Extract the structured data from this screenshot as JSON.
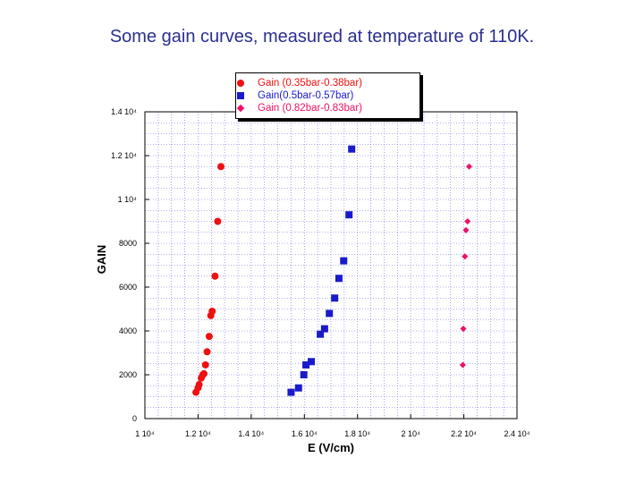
{
  "slide": {
    "title": "Some gain curves, measured at temperature of 110K."
  },
  "chart_data": {
    "type": "scatter",
    "title": "Some gain curves, measured at temperature of 110K.",
    "xlabel": "E (V/cm)",
    "ylabel": "GAIN",
    "xlim": [
      10000,
      24000
    ],
    "ylim": [
      0,
      14000
    ],
    "grid": true,
    "legend_position": "top-center",
    "x_ticks": [
      10000,
      12000,
      14000,
      16000,
      18000,
      20000,
      22000,
      24000
    ],
    "x_tick_labels": [
      "1 10⁴",
      "1.2 10⁴",
      "1.4 10⁴",
      "1.6 10⁴",
      "1.8 10⁴",
      "2 10⁴",
      "2.2 10⁴",
      "2.4 10⁴"
    ],
    "y_ticks": [
      0,
      2000,
      4000,
      6000,
      8000,
      10000,
      12000,
      14000
    ],
    "y_tick_labels": [
      "0",
      "2000",
      "4000",
      "6000",
      "8000",
      "1 10⁴",
      "1.2 10⁴",
      "1.4 10⁴"
    ],
    "series": [
      {
        "name": "Gain (0.35bar-0.38bar)",
        "marker": "circle",
        "color": "#ee1111",
        "x": [
          11920,
          12000,
          12040,
          12120,
          12180,
          12220,
          12280,
          12340,
          12420,
          12480,
          12530,
          12640,
          12740,
          12860
        ],
        "y": [
          1200,
          1400,
          1550,
          1850,
          2000,
          2050,
          2450,
          3050,
          3750,
          4700,
          4900,
          6500,
          9000,
          11500
        ]
      },
      {
        "name": "Gain(0.5bar-0.57bar)",
        "marker": "square",
        "color": "#1a1acc",
        "x": [
          15500,
          15780,
          15980,
          16060,
          16260,
          16600,
          16760,
          16940,
          17140,
          17300,
          17480,
          17680,
          17780
        ],
        "y": [
          1200,
          1400,
          2000,
          2450,
          2600,
          3850,
          4100,
          4800,
          5500,
          6400,
          7200,
          9300,
          12300
        ]
      },
      {
        "name": "Gain (0.82bar-0.83bar)",
        "marker": "diamond",
        "color": "#ee1166",
        "x": [
          21960,
          21980,
          22040,
          22080,
          22140,
          22200
        ],
        "y": [
          2450,
          4100,
          7400,
          8600,
          9000,
          11500
        ]
      }
    ]
  }
}
